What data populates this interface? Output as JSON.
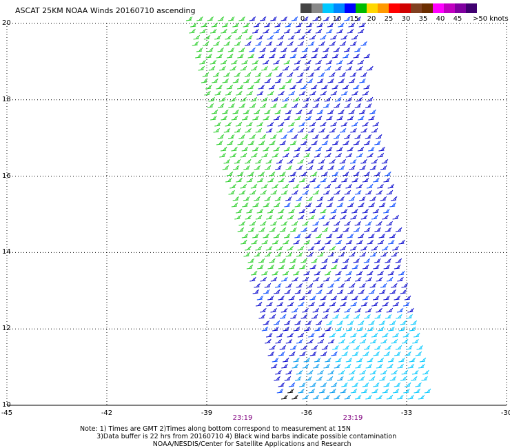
{
  "title": "ASCAT 25KM NOAA Winds 20160710 ascending",
  "legend": {
    "labels": [
      "0",
      "5",
      "10",
      "15",
      "20",
      "25",
      "30",
      "35",
      "40",
      "45",
      ">50 knots"
    ],
    "colors": [
      "#444444",
      "#888888",
      "#00c8ff",
      "#0088ff",
      "#0000ff",
      "#00bb00",
      "#ffd700",
      "#ff9900",
      "#ff0000",
      "#d00000",
      "#804020",
      "#6b2d00",
      "#ff00ff",
      "#c000c0",
      "#8000a0",
      "#400070"
    ]
  },
  "map": {
    "lon_range": [
      -45,
      -30
    ],
    "lat_range": [
      10,
      20
    ],
    "x_ticks": [
      "-45",
      "-42",
      "-39",
      "-36",
      "-33",
      "-30"
    ],
    "y_ticks": [
      "20",
      "18",
      "16",
      "14",
      "12",
      "10"
    ],
    "times": [
      "23:19",
      "23:19"
    ]
  },
  "notes": {
    "line1": "Note: 1) Times are GMT 2)Times along bottom correspond to measurement at 15N",
    "line2": "        3)Data buffer is 22 hrs from 20160710 4) Black wind barbs indicate possible contamination",
    "line3": "                                   NOAA/NESDIS/Center for Satellite Applications and Research"
  }
}
